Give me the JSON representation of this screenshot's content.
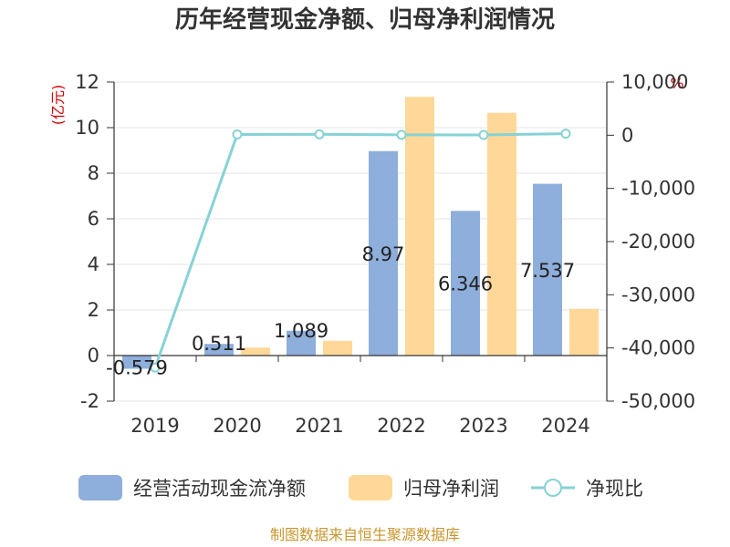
{
  "chart_data": {
    "type": "bar",
    "title": "历年经营现金净额、归母净利润情况",
    "categories": [
      "2019",
      "2020",
      "2021",
      "2022",
      "2023",
      "2024"
    ],
    "series": [
      {
        "name": "经营活动现金流净额",
        "type": "bar",
        "axis": "left",
        "color": "#8eaedb",
        "values": [
          -0.579,
          0.511,
          1.089,
          8.97,
          6.346,
          7.537
        ],
        "labels": [
          "-0.579",
          "0.511",
          "1.089",
          "8.97",
          "6.346",
          "7.537"
        ]
      },
      {
        "name": "归母净利润",
        "type": "bar",
        "axis": "left",
        "color": "#ffd899",
        "values": [
          -0.0013,
          0.35,
          0.65,
          11.35,
          10.65,
          2.05
        ]
      },
      {
        "name": "净现比",
        "type": "line",
        "axis": "right",
        "color": "#86d2d6",
        "values": [
          -43700,
          146,
          168,
          84,
          60,
          297
        ]
      }
    ],
    "y_left": {
      "unit": "(亿元)",
      "ylim": [
        -2,
        12
      ],
      "ticks": [
        "-2",
        "0",
        "2",
        "4",
        "6",
        "8",
        "10",
        "12"
      ]
    },
    "y_right": {
      "unit": "%",
      "ylim": [
        -50000,
        10000
      ],
      "ticks": [
        "-50,000",
        "-40,000",
        "-30,000",
        "-20,000",
        "-10,000",
        "0",
        "10,000"
      ]
    },
    "grid": true,
    "legend_position": "bottom"
  },
  "source": "制图数据来自恒生聚源数据库"
}
